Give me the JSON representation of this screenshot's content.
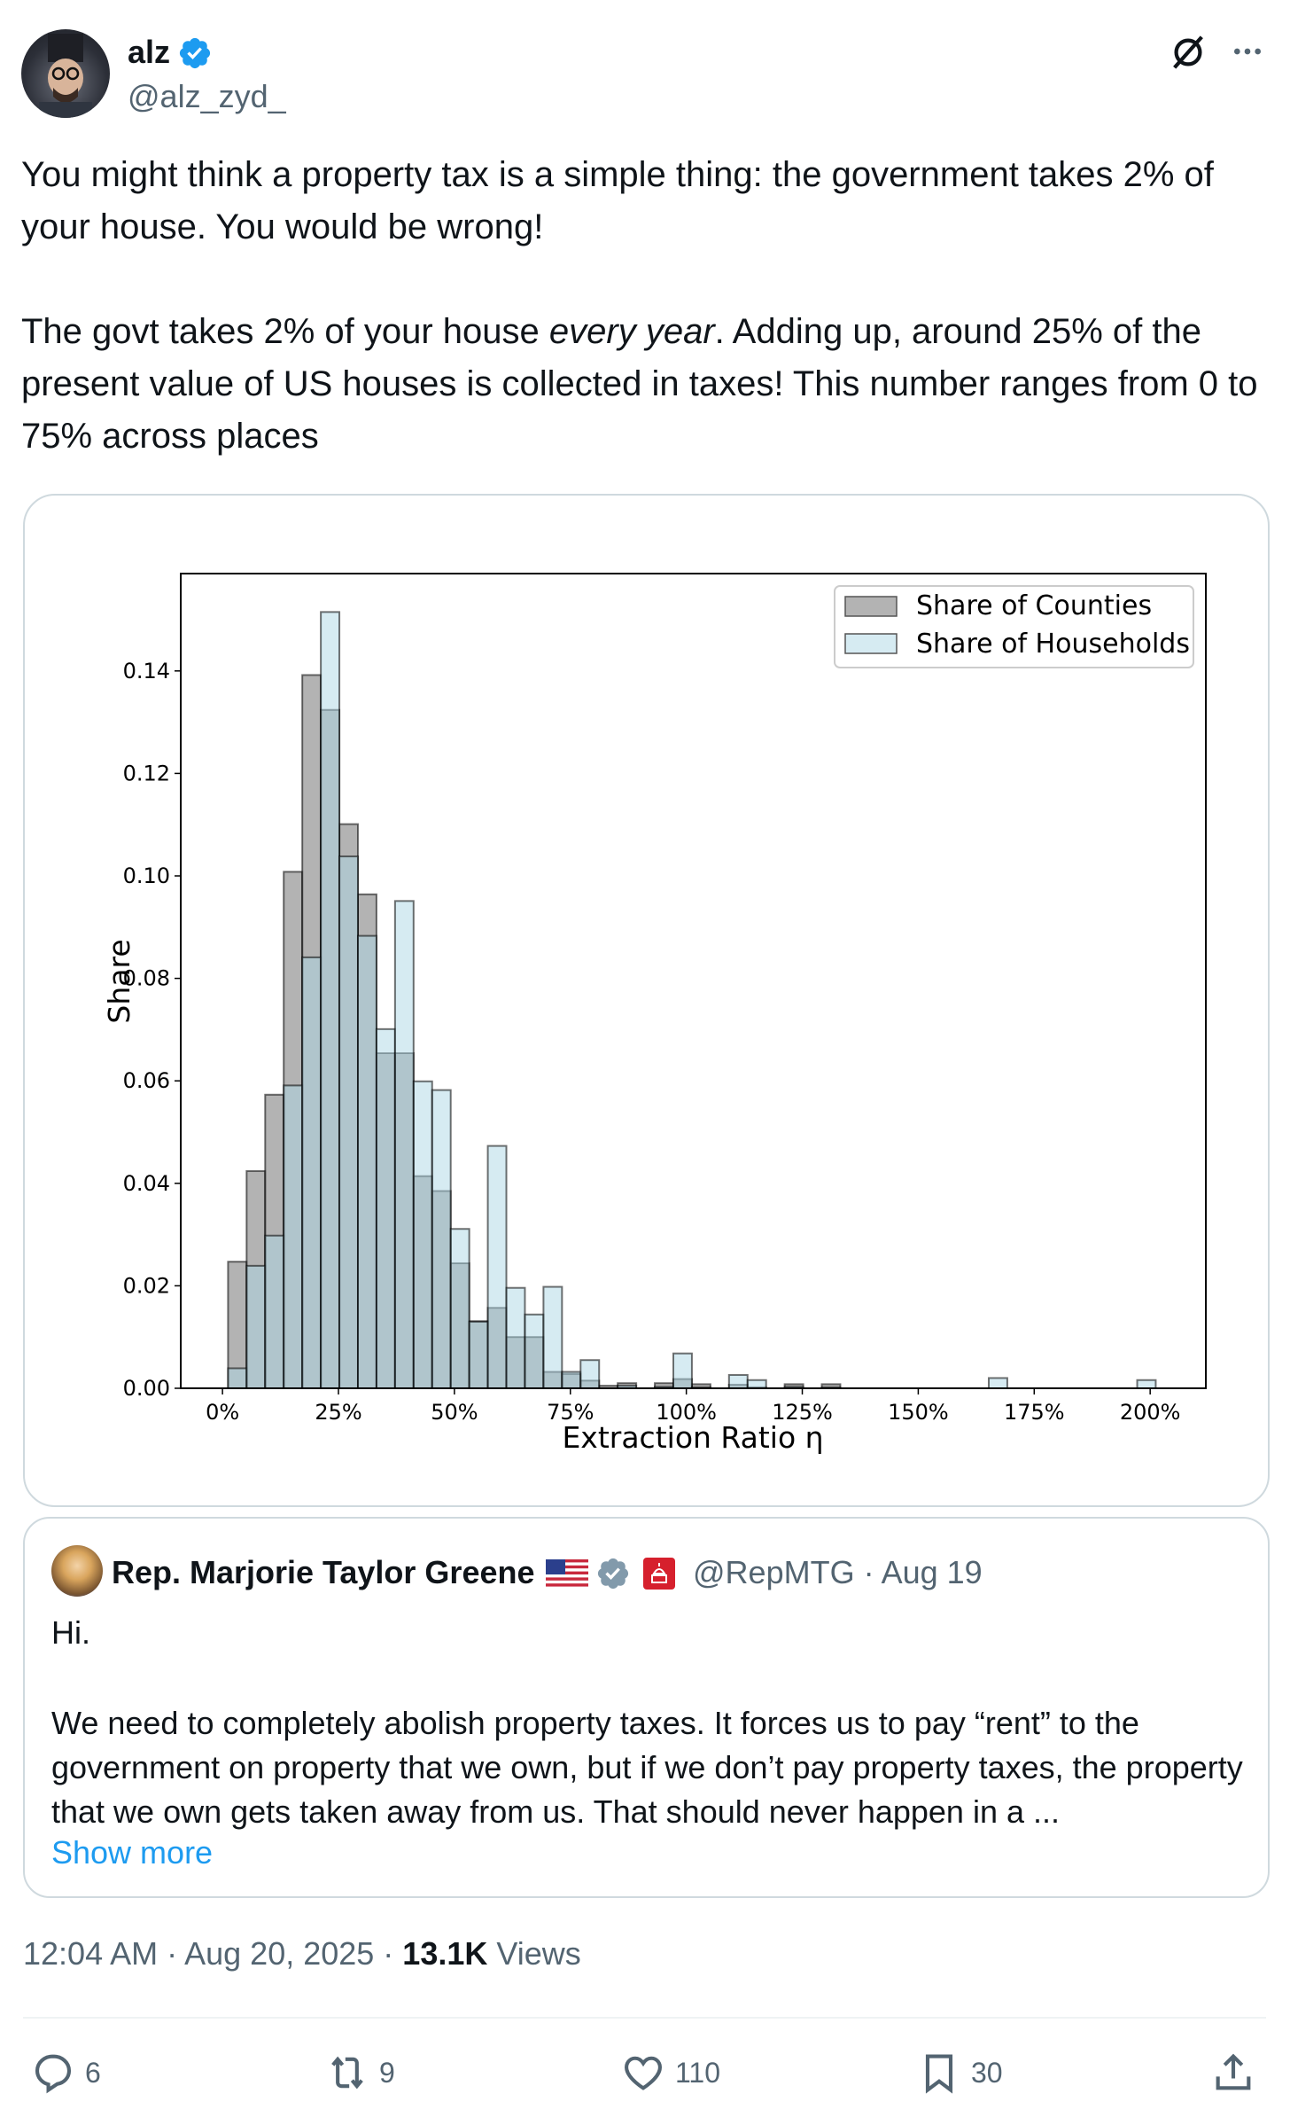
{
  "post": {
    "author": {
      "name": "alz",
      "handle": "@alz_zyd_",
      "verified": true
    },
    "paragraph1": "You might think a property tax is a simple thing: the government takes 2% of your house. You would be wrong!",
    "paragraph2": {
      "before": "The govt takes 2% of your house ",
      "emphasis": "every year",
      "after": ". Adding up, around 25% of the present value of US houses is collected in taxes! This number ranges from 0 to 75% across places"
    },
    "timestamp": "12:04 AM · Aug 20, 2025 · ",
    "views_count": "13.1K",
    "views_label": " Views",
    "actions": {
      "replies": "6",
      "reposts": "9",
      "likes": "110",
      "bookmarks": "30"
    }
  },
  "quote": {
    "name": "Rep. Marjorie Taylor Greene",
    "handle_date": "@RepMTG · Aug 19",
    "line1": "Hi.",
    "body": "We need to completely abolish property taxes. It forces us to pay “rent” to the government on property that we own, but if we don’t pay property taxes, the property that we own gets taken away from us. That should never happen in a ...",
    "show_more": "Show more"
  },
  "colors": {
    "accent": "#1d9bf0",
    "counties": "#808080",
    "households": "#add8e6"
  },
  "chart_data": {
    "type": "histogram",
    "title": "",
    "xlabel": "Extraction Ratio η",
    "ylabel": "Share",
    "xlim": [
      -9,
      212
    ],
    "ylim": [
      0,
      0.159
    ],
    "x_ticks": [
      0,
      25,
      50,
      75,
      100,
      125,
      150,
      175,
      200
    ],
    "x_tick_labels": [
      "0%",
      "25%",
      "50%",
      "75%",
      "100%",
      "125%",
      "150%",
      "175%",
      "200%"
    ],
    "y_ticks": [
      0,
      0.02,
      0.04,
      0.06,
      0.08,
      0.1,
      0.12,
      0.14
    ],
    "y_tick_labels": [
      "0.00",
      "0.02",
      "0.04",
      "0.06",
      "0.08",
      "0.10",
      "0.12",
      "0.14"
    ],
    "grid": false,
    "legend_position": "top-right",
    "bin_start": 1.2,
    "bin_width": 4,
    "series": [
      {
        "name": "Share of Counties",
        "color": "#808080",
        "values": [
          0.0247,
          0.0424,
          0.0573,
          0.1008,
          0.1392,
          0.1324,
          0.1101,
          0.0964,
          0.0654,
          0.0654,
          0.0414,
          0.0385,
          0.0244,
          0.0131,
          0.0157,
          0.01,
          0.01,
          0.0032,
          0.0028,
          0.0015,
          0.0005,
          0.001,
          0,
          0.001,
          0.0018,
          0.0008,
          0,
          0.0007,
          0.0002,
          0,
          0.0008,
          0,
          0.0008,
          0,
          0,
          0,
          0,
          0,
          0,
          0,
          0,
          0,
          0,
          0,
          0,
          0,
          0,
          0,
          0,
          0
        ]
      },
      {
        "name": "Share of Households",
        "color": "#add8e6",
        "values": [
          0.0039,
          0.0239,
          0.0298,
          0.0591,
          0.0841,
          0.1515,
          0.1038,
          0.0883,
          0.0701,
          0.0951,
          0.0599,
          0.0582,
          0.0311,
          0.013,
          0.0473,
          0.0196,
          0.0144,
          0.0198,
          0.0032,
          0.0055,
          0,
          0.0005,
          0,
          0.0003,
          0.0068,
          0.0002,
          0,
          0.0026,
          0.0016,
          0,
          0.0003,
          0,
          0.0002,
          0,
          0,
          0,
          0,
          0,
          0,
          0,
          0,
          0.002,
          0,
          0,
          0,
          0,
          0,
          0,
          0,
          0.0016
        ]
      }
    ]
  }
}
